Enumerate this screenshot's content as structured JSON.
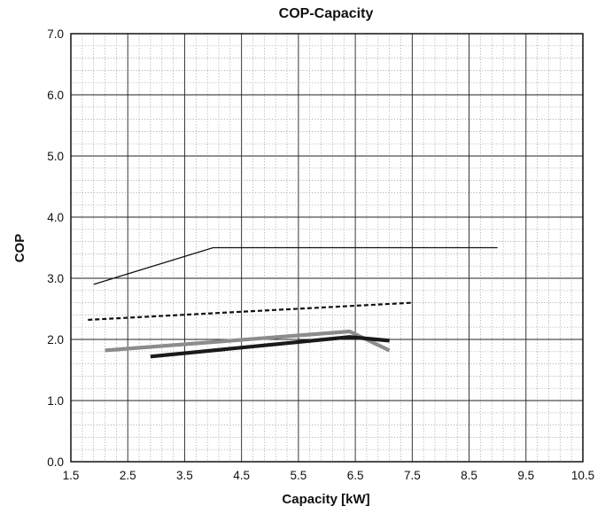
{
  "chart_data": {
    "type": "line",
    "title": "COP-Capacity",
    "xlabel": "Capacity [kW]",
    "ylabel": "COP",
    "xlim": [
      1.5,
      10.5
    ],
    "ylim": [
      0.0,
      7.0
    ],
    "x_ticks": [
      "1.5",
      "2.5",
      "3.5",
      "4.5",
      "5.5",
      "6.5",
      "7.5",
      "8.5",
      "9.5",
      "10.5"
    ],
    "y_ticks": [
      "0.0",
      "1.0",
      "2.0",
      "3.0",
      "4.0",
      "5.0",
      "6.0",
      "7.0"
    ],
    "grid": true,
    "minor_grid": true,
    "legend": "none",
    "series": [
      {
        "points": [
          [
            1.9,
            2.9
          ],
          [
            4.0,
            3.5
          ],
          [
            9.0,
            3.5
          ]
        ],
        "color": "#111111",
        "style": "solid-thin"
      },
      {
        "points": [
          [
            1.8,
            2.32
          ],
          [
            7.5,
            2.6
          ]
        ],
        "color": "#111111",
        "style": "dashed"
      },
      {
        "points": [
          [
            2.1,
            1.82
          ],
          [
            6.4,
            2.13
          ],
          [
            7.1,
            1.82
          ]
        ],
        "color": "#8c8c8c",
        "style": "solid-thick"
      },
      {
        "points": [
          [
            2.9,
            1.72
          ],
          [
            6.4,
            2.04
          ],
          [
            7.1,
            1.98
          ]
        ],
        "color": "#1a1a1a",
        "style": "solid-thick"
      }
    ]
  }
}
